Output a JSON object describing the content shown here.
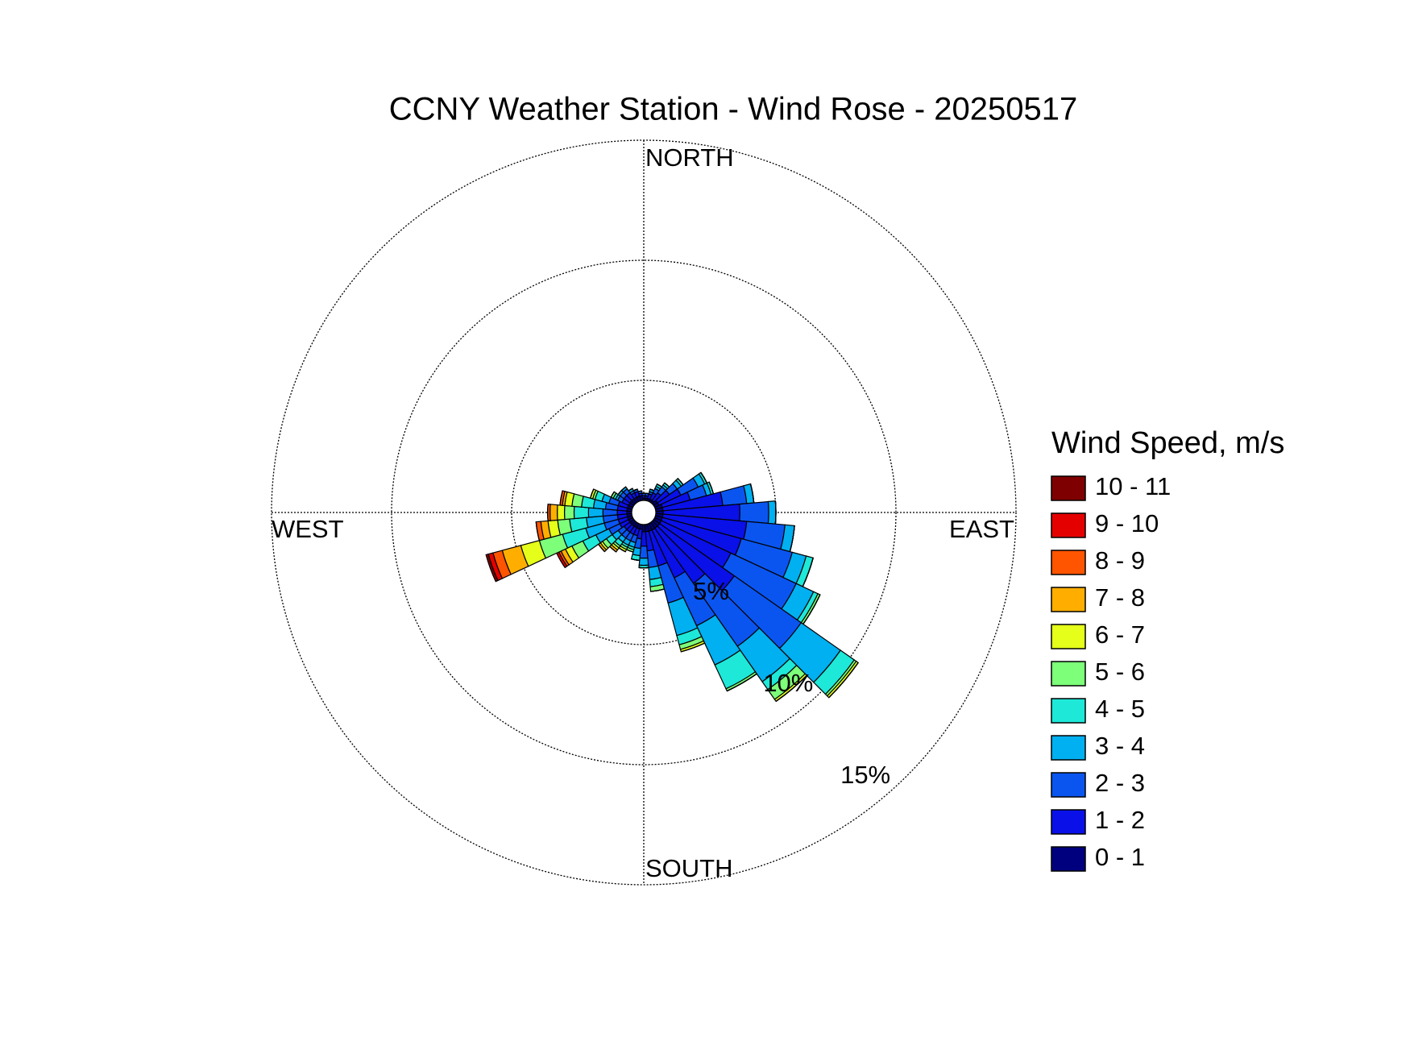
{
  "chart_data": {
    "type": "windrose",
    "title": "CCNY Weather Station - Wind Rose - 20250517",
    "compass": [
      "NORTH",
      "EAST",
      "SOUTH",
      "WEST"
    ],
    "legend_title": "Wind Speed, m/s",
    "ylim": [
      0,
      15
    ],
    "yticks": [
      {
        "value": 5,
        "label": "5%"
      },
      {
        "value": 10,
        "label": "10%"
      },
      {
        "value": 15,
        "label": "15%"
      }
    ],
    "grid": true,
    "series": [
      {
        "name": "0 - 1",
        "color": "#00007f",
        "values": [
          0.1,
          0.1,
          0.1,
          0.1,
          0.1,
          0.2,
          0.2,
          0.3,
          0.3,
          0.3,
          0.3,
          0.3,
          0.3,
          0.3,
          0.3,
          0.3,
          0.3,
          0.3,
          0.3,
          0.2,
          0.2,
          0.2,
          0.2,
          0.2,
          0.2,
          0.2,
          0.2,
          0.2,
          0.2,
          0.2,
          0.2,
          0.2,
          0.2,
          0.2,
          0.2,
          0.2
        ]
      },
      {
        "name": "1 - 2",
        "color": "#0a10e8",
        "values": [
          0.1,
          0.1,
          0.2,
          0.3,
          0.4,
          0.6,
          1.0,
          1.2,
          2.5,
          3.2,
          3.5,
          3.4,
          3.2,
          3.8,
          2.8,
          2.2,
          1.5,
          0.8,
          0.6,
          0.4,
          0.3,
          0.3,
          0.3,
          0.3,
          0.4,
          0.4,
          0.4,
          0.4,
          0.4,
          0.4,
          0.3,
          0.3,
          0.3,
          0.2,
          0.2,
          0.1
        ]
      },
      {
        "name": "2 - 3",
        "color": "#0a55f0",
        "values": [
          0.1,
          0.1,
          0.1,
          0.2,
          0.3,
          0.4,
          0.8,
          0.7,
          1.0,
          1.2,
          1.6,
          2.2,
          3.0,
          3.4,
          3.2,
          2.2,
          1.6,
          0.7,
          0.5,
          0.4,
          0.3,
          0.3,
          0.3,
          0.3,
          0.5,
          0.6,
          0.6,
          0.6,
          0.5,
          0.4,
          0.2,
          0.2,
          0.2,
          0.1,
          0.1,
          0.1
        ]
      },
      {
        "name": "3 - 4",
        "color": "#00b0f0",
        "values": [
          0,
          0,
          0.1,
          0.1,
          0.1,
          0.2,
          0.3,
          0.2,
          0.3,
          0.3,
          0.4,
          0.6,
          0.8,
          2.0,
          1.8,
          1.8,
          1.4,
          0.5,
          0.3,
          0.3,
          0.2,
          0.2,
          0.2,
          0.3,
          0.6,
          0.8,
          0.7,
          0.6,
          0.5,
          0.3,
          0.1,
          0.1,
          0.1,
          0.1,
          0,
          0
        ]
      },
      {
        "name": "4 - 5",
        "color": "#1ee8d8",
        "values": [
          0,
          0,
          0,
          0.1,
          0.1,
          0.1,
          0.1,
          0.1,
          0,
          0,
          0,
          0.3,
          0.2,
          0.7,
          0.4,
          1.1,
          0.4,
          0.3,
          0.1,
          0.2,
          0.1,
          0.1,
          0.2,
          0.3,
          0.6,
          1.0,
          0.7,
          0.6,
          0.5,
          0.3,
          0.1,
          0,
          0,
          0,
          0,
          0
        ]
      },
      {
        "name": "5 - 6",
        "color": "#7dff7a",
        "values": [
          0,
          0,
          0,
          0,
          0,
          0,
          0,
          0,
          0,
          0,
          0,
          0,
          0.1,
          0.1,
          0.5,
          0.1,
          0.2,
          0.2,
          0,
          0,
          0.1,
          0.1,
          0.1,
          0.2,
          0.5,
          1.0,
          0.5,
          0.4,
          0.4,
          0.1,
          0.1,
          0,
          0,
          0,
          0,
          0
        ]
      },
      {
        "name": "6 - 7",
        "color": "#e5ff1a",
        "values": [
          0,
          0,
          0,
          0,
          0,
          0,
          0,
          0,
          0,
          0,
          0,
          0,
          0,
          0.1,
          0.1,
          0,
          0.1,
          0,
          0,
          0,
          0,
          0.1,
          0.1,
          0.1,
          0.3,
          0.8,
          0.4,
          0.3,
          0.3,
          0.1,
          0,
          0,
          0,
          0,
          0,
          0
        ]
      },
      {
        "name": "7 - 8",
        "color": "#ffae00",
        "values": [
          0,
          0,
          0,
          0,
          0,
          0,
          0,
          0,
          0,
          0,
          0,
          0,
          0,
          0,
          0,
          0,
          0,
          0,
          0,
          0,
          0,
          0,
          0.1,
          0.1,
          0.2,
          0.8,
          0.3,
          0.3,
          0.1,
          0,
          0,
          0,
          0,
          0,
          0,
          0
        ]
      },
      {
        "name": "8 - 9",
        "color": "#ff5500",
        "values": [
          0,
          0,
          0,
          0,
          0,
          0,
          0,
          0,
          0,
          0,
          0,
          0,
          0,
          0,
          0,
          0,
          0,
          0,
          0,
          0,
          0,
          0,
          0,
          0,
          0.1,
          0.4,
          0.2,
          0.1,
          0.1,
          0,
          0,
          0,
          0,
          0,
          0,
          0
        ]
      },
      {
        "name": "9 - 10",
        "color": "#e50000",
        "values": [
          0,
          0,
          0,
          0,
          0,
          0,
          0,
          0,
          0,
          0,
          0,
          0,
          0,
          0,
          0,
          0,
          0,
          0,
          0,
          0,
          0,
          0,
          0,
          0,
          0.1,
          0.2,
          0,
          0,
          0,
          0,
          0,
          0,
          0,
          0,
          0,
          0
        ]
      },
      {
        "name": "10 - 11",
        "color": "#7f0000",
        "values": [
          0,
          0,
          0,
          0,
          0,
          0,
          0,
          0,
          0,
          0,
          0,
          0,
          0,
          0,
          0,
          0,
          0,
          0,
          0,
          0,
          0,
          0,
          0,
          0,
          0,
          0.1,
          0,
          0,
          0,
          0,
          0,
          0,
          0,
          0,
          0,
          0
        ]
      }
    ]
  }
}
